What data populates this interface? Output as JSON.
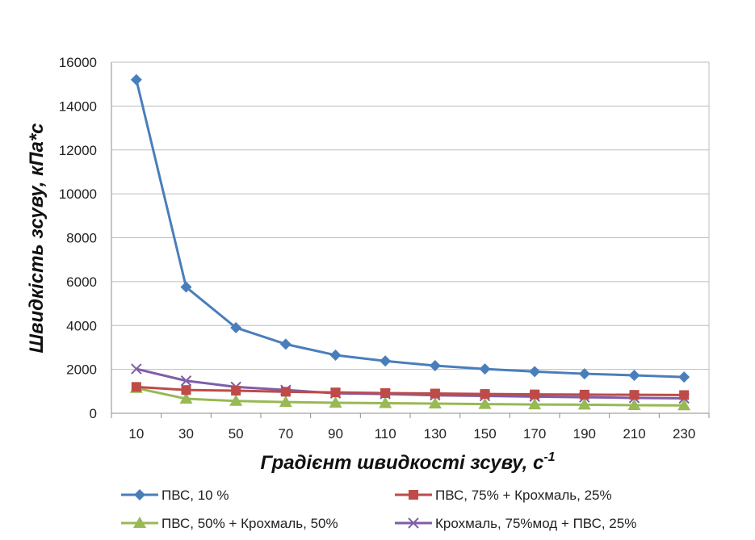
{
  "chart_data": {
    "type": "line",
    "title": "",
    "xlabel": "Градієнт швидкості зсуву, с",
    "xlabel_sup": "-1",
    "ylabel": "Швидкість зсуву, кПа*с",
    "x": [
      10,
      30,
      50,
      70,
      90,
      110,
      130,
      150,
      170,
      190,
      210,
      230
    ],
    "ylim": [
      0,
      16000
    ],
    "yticks": [
      0,
      2000,
      4000,
      6000,
      8000,
      10000,
      12000,
      14000,
      16000
    ],
    "grid": true,
    "legend_position": "bottom",
    "series": [
      {
        "name": "ПВС, 10 %",
        "color": "#4a7ebb",
        "marker": "diamond",
        "values": [
          15200,
          5750,
          3900,
          3150,
          2650,
          2380,
          2170,
          2020,
          1900,
          1800,
          1730,
          1650
        ]
      },
      {
        "name": "ПВС, 75% + Крохмаль, 25%",
        "color": "#be4b48",
        "marker": "square",
        "values": [
          1200,
          1060,
          1030,
          980,
          950,
          920,
          900,
          880,
          860,
          850,
          840,
          830
        ]
      },
      {
        "name": "ПВС, 50% + Крохмаль, 50%",
        "color": "#98b954",
        "marker": "triangle",
        "values": [
          1150,
          660,
          560,
          510,
          480,
          460,
          440,
          420,
          400,
          390,
          370,
          360
        ]
      },
      {
        "name": "Крохмаль, 75%мод + ПВС, 25%",
        "color": "#7e5ea8",
        "marker": "x",
        "values": [
          2020,
          1480,
          1200,
          1060,
          910,
          880,
          820,
          790,
          760,
          730,
          700,
          680
        ]
      }
    ]
  }
}
